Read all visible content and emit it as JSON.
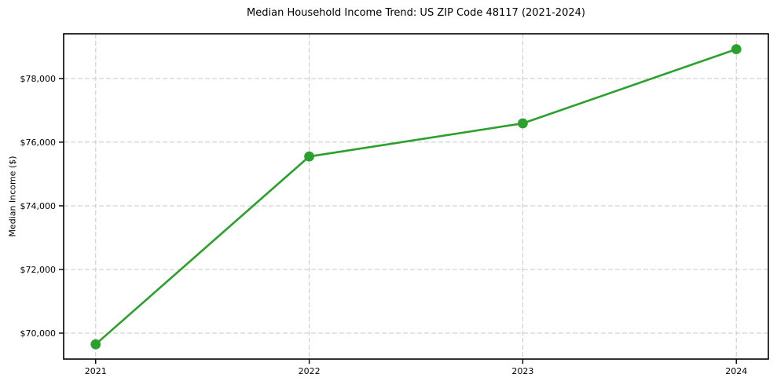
{
  "figure": {
    "title": "Median Household Income Trend: US ZIP Code 48117 (2021-2024)",
    "ylabel": "Median Income ($)"
  },
  "chart_data": {
    "type": "line",
    "title": "Median Household Income Trend: US ZIP Code 48117 (2021-2024)",
    "xlabel": "",
    "ylabel": "Median Income ($)",
    "series": [
      {
        "name": "Median household income",
        "x": [
          2021,
          2022,
          2023,
          2024
        ],
        "values": [
          69650,
          75550,
          76590,
          78920
        ]
      }
    ],
    "x_ticks": [
      {
        "value": 2021,
        "label": "2021"
      },
      {
        "value": 2022,
        "label": "2022"
      },
      {
        "value": 2023,
        "label": "2023"
      },
      {
        "value": 2024,
        "label": "2024"
      }
    ],
    "y_ticks": [
      {
        "value": 70000,
        "label": "$70,000"
      },
      {
        "value": 72000,
        "label": "$72,000"
      },
      {
        "value": 74000,
        "label": "$74,000"
      },
      {
        "value": 76000,
        "label": "$76,000"
      },
      {
        "value": 78000,
        "label": "$78,000"
      }
    ],
    "xlim": [
      2020.85,
      2024.15
    ],
    "ylim": [
      69185,
      79405
    ],
    "grid": true,
    "grid_style": "dashed",
    "legend_position": "none",
    "colors": {
      "line": "#2ca02c",
      "marker": "#2ca02c",
      "grid": "#c9c9c9",
      "spine": "#000000",
      "text": "#000000",
      "background": "#ffffff"
    }
  }
}
